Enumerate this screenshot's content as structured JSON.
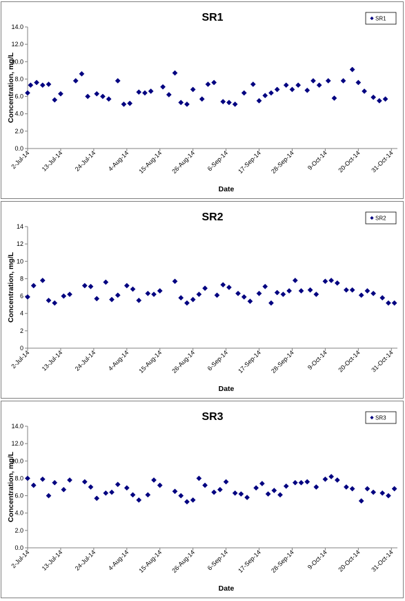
{
  "chart_data": [
    {
      "type": "scatter",
      "title": "SR1",
      "xlabel": "Date",
      "ylabel": "Concentration, mg/L",
      "ylim": [
        0,
        14
      ],
      "ystep": 2,
      "ytick_decimals": 1,
      "grid": false,
      "legend": "top-right",
      "xtick_labels": [
        "2-Jul-14",
        "13-Jul-14",
        "24-Jul-14",
        "4-Aug-14",
        "15-Aug-14",
        "26-Aug-14",
        "6-Sep-14",
        "17-Sep-14",
        "28-Sep-14",
        "9-Oct-14",
        "20-Oct-14",
        "31-Oct-14"
      ],
      "xlim": [
        "2014-07-02",
        "2014-11-02"
      ],
      "series": [
        {
          "name": "SR1",
          "color": "#000080",
          "points": [
            {
              "x": "2014-07-02",
              "y": 6.4
            },
            {
              "x": "2014-07-03",
              "y": 7.3
            },
            {
              "x": "2014-07-05",
              "y": 7.6
            },
            {
              "x": "2014-07-07",
              "y": 7.3
            },
            {
              "x": "2014-07-09",
              "y": 7.4
            },
            {
              "x": "2014-07-11",
              "y": 5.6
            },
            {
              "x": "2014-07-13",
              "y": 6.3
            },
            {
              "x": "2014-07-18",
              "y": 7.8
            },
            {
              "x": "2014-07-20",
              "y": 8.6
            },
            {
              "x": "2014-07-22",
              "y": 6.0
            },
            {
              "x": "2014-07-25",
              "y": 6.3
            },
            {
              "x": "2014-07-27",
              "y": 6.0
            },
            {
              "x": "2014-07-29",
              "y": 5.7
            },
            {
              "x": "2014-08-01",
              "y": 7.8
            },
            {
              "x": "2014-08-03",
              "y": 5.1
            },
            {
              "x": "2014-08-05",
              "y": 5.2
            },
            {
              "x": "2014-08-08",
              "y": 6.5
            },
            {
              "x": "2014-08-10",
              "y": 6.4
            },
            {
              "x": "2014-08-12",
              "y": 6.6
            },
            {
              "x": "2014-08-16",
              "y": 7.1
            },
            {
              "x": "2014-08-18",
              "y": 6.2
            },
            {
              "x": "2014-08-20",
              "y": 8.7
            },
            {
              "x": "2014-08-22",
              "y": 5.3
            },
            {
              "x": "2014-08-24",
              "y": 5.1
            },
            {
              "x": "2014-08-26",
              "y": 6.8
            },
            {
              "x": "2014-08-29",
              "y": 5.7
            },
            {
              "x": "2014-08-31",
              "y": 7.4
            },
            {
              "x": "2014-09-02",
              "y": 7.6
            },
            {
              "x": "2014-09-05",
              "y": 5.4
            },
            {
              "x": "2014-09-07",
              "y": 5.3
            },
            {
              "x": "2014-09-09",
              "y": 5.1
            },
            {
              "x": "2014-09-12",
              "y": 6.4
            },
            {
              "x": "2014-09-15",
              "y": 7.4
            },
            {
              "x": "2014-09-17",
              "y": 5.5
            },
            {
              "x": "2014-09-19",
              "y": 6.1
            },
            {
              "x": "2014-09-21",
              "y": 6.4
            },
            {
              "x": "2014-09-23",
              "y": 6.8
            },
            {
              "x": "2014-09-26",
              "y": 7.3
            },
            {
              "x": "2014-09-28",
              "y": 6.8
            },
            {
              "x": "2014-09-30",
              "y": 7.3
            },
            {
              "x": "2014-10-03",
              "y": 6.7
            },
            {
              "x": "2014-10-05",
              "y": 7.8
            },
            {
              "x": "2014-10-07",
              "y": 7.3
            },
            {
              "x": "2014-10-10",
              "y": 7.8
            },
            {
              "x": "2014-10-12",
              "y": 5.8
            },
            {
              "x": "2014-10-15",
              "y": 7.8
            },
            {
              "x": "2014-10-18",
              "y": 9.1
            },
            {
              "x": "2014-10-20",
              "y": 7.6
            },
            {
              "x": "2014-10-22",
              "y": 6.6
            },
            {
              "x": "2014-10-25",
              "y": 5.9
            },
            {
              "x": "2014-10-27",
              "y": 5.5
            },
            {
              "x": "2014-10-29",
              "y": 5.7
            }
          ]
        }
      ]
    },
    {
      "type": "scatter",
      "title": "SR2",
      "xlabel": "Date",
      "ylabel": "Concentration, mg/L",
      "ylim": [
        0,
        14
      ],
      "ystep": 2,
      "ytick_decimals": 0,
      "grid": false,
      "legend": "top-right",
      "xtick_labels": [
        "2-Jul-14",
        "13-Jul-14",
        "24-Jul-14",
        "4-Aug-14",
        "15-Aug-14",
        "26-Aug-14",
        "6-Sep-14",
        "17-Sep-14",
        "28-Sep-14",
        "9-Oct-14",
        "20-Oct-14",
        "31-Oct-14"
      ],
      "xlim": [
        "2014-07-02",
        "2014-11-02"
      ],
      "series": [
        {
          "name": "SR2",
          "color": "#000080",
          "points": [
            {
              "x": "2014-07-02",
              "y": 5.9
            },
            {
              "x": "2014-07-04",
              "y": 7.2
            },
            {
              "x": "2014-07-07",
              "y": 7.8
            },
            {
              "x": "2014-07-09",
              "y": 5.5
            },
            {
              "x": "2014-07-11",
              "y": 5.2
            },
            {
              "x": "2014-07-14",
              "y": 6.0
            },
            {
              "x": "2014-07-16",
              "y": 6.2
            },
            {
              "x": "2014-07-21",
              "y": 7.2
            },
            {
              "x": "2014-07-23",
              "y": 7.1
            },
            {
              "x": "2014-07-25",
              "y": 5.7
            },
            {
              "x": "2014-07-28",
              "y": 7.6
            },
            {
              "x": "2014-07-30",
              "y": 5.6
            },
            {
              "x": "2014-08-01",
              "y": 6.1
            },
            {
              "x": "2014-08-04",
              "y": 7.2
            },
            {
              "x": "2014-08-06",
              "y": 6.8
            },
            {
              "x": "2014-08-08",
              "y": 5.5
            },
            {
              "x": "2014-08-11",
              "y": 6.3
            },
            {
              "x": "2014-08-13",
              "y": 6.2
            },
            {
              "x": "2014-08-15",
              "y": 6.6
            },
            {
              "x": "2014-08-20",
              "y": 7.7
            },
            {
              "x": "2014-08-22",
              "y": 5.8
            },
            {
              "x": "2014-08-24",
              "y": 5.2
            },
            {
              "x": "2014-08-26",
              "y": 5.6
            },
            {
              "x": "2014-08-28",
              "y": 6.2
            },
            {
              "x": "2014-08-30",
              "y": 6.9
            },
            {
              "x": "2014-09-03",
              "y": 6.1
            },
            {
              "x": "2014-09-05",
              "y": 7.3
            },
            {
              "x": "2014-09-07",
              "y": 7.0
            },
            {
              "x": "2014-09-10",
              "y": 6.3
            },
            {
              "x": "2014-09-12",
              "y": 5.9
            },
            {
              "x": "2014-09-14",
              "y": 5.4
            },
            {
              "x": "2014-09-17",
              "y": 6.3
            },
            {
              "x": "2014-09-19",
              "y": 7.1
            },
            {
              "x": "2014-09-21",
              "y": 5.2
            },
            {
              "x": "2014-09-23",
              "y": 6.4
            },
            {
              "x": "2014-09-25",
              "y": 6.2
            },
            {
              "x": "2014-09-27",
              "y": 6.6
            },
            {
              "x": "2014-09-29",
              "y": 7.8
            },
            {
              "x": "2014-10-01",
              "y": 6.6
            },
            {
              "x": "2014-10-04",
              "y": 6.7
            },
            {
              "x": "2014-10-06",
              "y": 6.2
            },
            {
              "x": "2014-10-09",
              "y": 7.7
            },
            {
              "x": "2014-10-11",
              "y": 7.8
            },
            {
              "x": "2014-10-13",
              "y": 7.5
            },
            {
              "x": "2014-10-16",
              "y": 6.7
            },
            {
              "x": "2014-10-18",
              "y": 6.7
            },
            {
              "x": "2014-10-21",
              "y": 6.1
            },
            {
              "x": "2014-10-23",
              "y": 6.6
            },
            {
              "x": "2014-10-25",
              "y": 6.3
            },
            {
              "x": "2014-10-28",
              "y": 5.8
            },
            {
              "x": "2014-10-30",
              "y": 5.2
            },
            {
              "x": "2014-11-01",
              "y": 5.2
            }
          ]
        }
      ]
    },
    {
      "type": "scatter",
      "title": "SR3",
      "xlabel": "Date",
      "ylabel": "Concentration, mg/L",
      "ylim": [
        0,
        14
      ],
      "ystep": 2,
      "ytick_decimals": 1,
      "grid": false,
      "legend": "top-right",
      "xtick_labels": [
        "2-Jul-14",
        "13-Jul-14",
        "24-Jul-14",
        "4-Aug-14",
        "15-Aug-14",
        "26-Aug-14",
        "6-Sep-14",
        "17-Sep-14",
        "28-Sep-14",
        "9-Oct-14",
        "20-Oct-14",
        "31-Oct-14"
      ],
      "xlim": [
        "2014-07-02",
        "2014-11-02"
      ],
      "series": [
        {
          "name": "SR3",
          "color": "#000080",
          "points": [
            {
              "x": "2014-07-02",
              "y": 8.0
            },
            {
              "x": "2014-07-04",
              "y": 7.2
            },
            {
              "x": "2014-07-07",
              "y": 7.9
            },
            {
              "x": "2014-07-09",
              "y": 6.0
            },
            {
              "x": "2014-07-11",
              "y": 7.5
            },
            {
              "x": "2014-07-14",
              "y": 6.7
            },
            {
              "x": "2014-07-16",
              "y": 7.8
            },
            {
              "x": "2014-07-21",
              "y": 7.6
            },
            {
              "x": "2014-07-23",
              "y": 7.0
            },
            {
              "x": "2014-07-25",
              "y": 5.7
            },
            {
              "x": "2014-07-28",
              "y": 6.3
            },
            {
              "x": "2014-07-30",
              "y": 6.4
            },
            {
              "x": "2014-08-01",
              "y": 7.3
            },
            {
              "x": "2014-08-04",
              "y": 6.9
            },
            {
              "x": "2014-08-06",
              "y": 6.1
            },
            {
              "x": "2014-08-08",
              "y": 5.5
            },
            {
              "x": "2014-08-11",
              "y": 6.1
            },
            {
              "x": "2014-08-13",
              "y": 7.8
            },
            {
              "x": "2014-08-15",
              "y": 7.2
            },
            {
              "x": "2014-08-20",
              "y": 6.5
            },
            {
              "x": "2014-08-22",
              "y": 6.0
            },
            {
              "x": "2014-08-24",
              "y": 5.3
            },
            {
              "x": "2014-08-26",
              "y": 5.5
            },
            {
              "x": "2014-08-28",
              "y": 8.0
            },
            {
              "x": "2014-08-30",
              "y": 7.2
            },
            {
              "x": "2014-09-02",
              "y": 6.4
            },
            {
              "x": "2014-09-04",
              "y": 6.7
            },
            {
              "x": "2014-09-06",
              "y": 7.6
            },
            {
              "x": "2014-09-09",
              "y": 6.3
            },
            {
              "x": "2014-09-11",
              "y": 6.2
            },
            {
              "x": "2014-09-13",
              "y": 5.8
            },
            {
              "x": "2014-09-16",
              "y": 6.9
            },
            {
              "x": "2014-09-18",
              "y": 7.4
            },
            {
              "x": "2014-09-20",
              "y": 6.2
            },
            {
              "x": "2014-09-22",
              "y": 6.6
            },
            {
              "x": "2014-09-24",
              "y": 6.1
            },
            {
              "x": "2014-09-26",
              "y": 7.1
            },
            {
              "x": "2014-09-29",
              "y": 7.5
            },
            {
              "x": "2014-10-01",
              "y": 7.5
            },
            {
              "x": "2014-10-03",
              "y": 7.6
            },
            {
              "x": "2014-10-06",
              "y": 7.0
            },
            {
              "x": "2014-10-09",
              "y": 7.9
            },
            {
              "x": "2014-10-11",
              "y": 8.2
            },
            {
              "x": "2014-10-13",
              "y": 7.8
            },
            {
              "x": "2014-10-16",
              "y": 7.0
            },
            {
              "x": "2014-10-18",
              "y": 6.8
            },
            {
              "x": "2014-10-21",
              "y": 5.4
            },
            {
              "x": "2014-10-23",
              "y": 6.8
            },
            {
              "x": "2014-10-25",
              "y": 6.4
            },
            {
              "x": "2014-10-28",
              "y": 6.3
            },
            {
              "x": "2014-10-30",
              "y": 6.0
            },
            {
              "x": "2014-11-01",
              "y": 6.8
            }
          ]
        }
      ]
    }
  ]
}
